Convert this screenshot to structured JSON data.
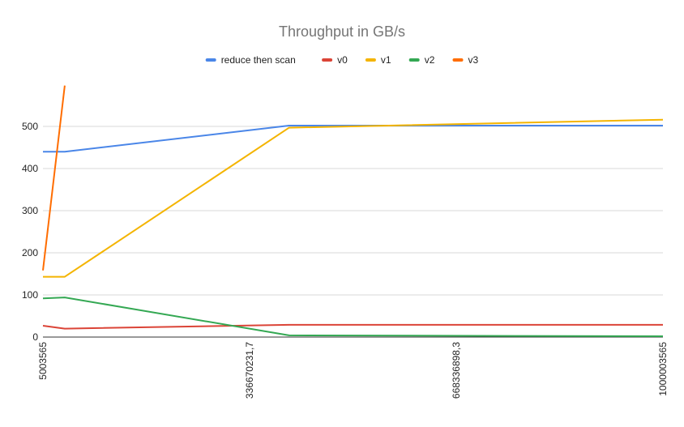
{
  "chart_data": {
    "type": "line",
    "title": "Throughput in GB/s",
    "xlabel": "",
    "ylabel": "",
    "x_scale": "linear",
    "xlim": [
      5003565,
      1000003565
    ],
    "ylim": [
      0,
      600
    ],
    "x_ticks": [
      {
        "value": 5003565,
        "label": "5003565"
      },
      {
        "value": 336670231.7,
        "label": "336670231,7"
      },
      {
        "value": 668336898.3,
        "label": "668336898,3"
      },
      {
        "value": 1000003565,
        "label": "1000003565"
      }
    ],
    "y_ticks": [
      0,
      100,
      200,
      300,
      400,
      500
    ],
    "grid": true,
    "legend_position": "top",
    "series": [
      {
        "name": "reduce then scan",
        "color": "#4a86e8",
        "points": [
          [
            5003565,
            440
          ],
          [
            40000000,
            440
          ],
          [
            400000000,
            502
          ],
          [
            1000003565,
            502
          ]
        ]
      },
      {
        "name": "v0",
        "color": "#db4437",
        "points": [
          [
            5003565,
            27
          ],
          [
            40000000,
            20
          ],
          [
            400000000,
            29
          ],
          [
            1000003565,
            29
          ]
        ]
      },
      {
        "name": "v1",
        "color": "#f4b400",
        "points": [
          [
            5003565,
            143
          ],
          [
            40000000,
            143
          ],
          [
            400000000,
            497
          ],
          [
            1000003565,
            516
          ]
        ]
      },
      {
        "name": "v2",
        "color": "#34a853",
        "points": [
          [
            5003565,
            92
          ],
          [
            40000000,
            94
          ],
          [
            400000000,
            4
          ],
          [
            1000003565,
            2
          ]
        ]
      },
      {
        "name": "v3",
        "color": "#ff6d01",
        "points": [
          [
            5003565,
            158
          ],
          [
            40000000,
            597
          ]
        ]
      }
    ]
  }
}
